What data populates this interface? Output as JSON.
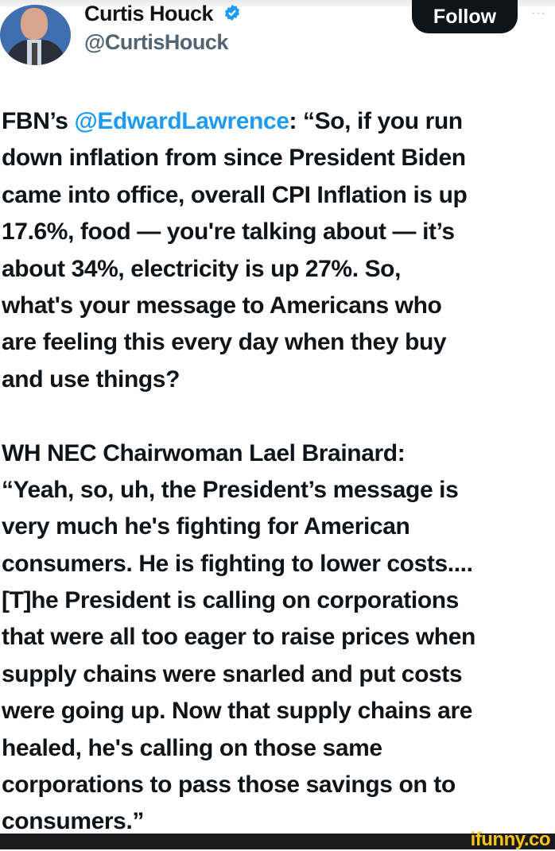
{
  "author": {
    "name": "Curtis Houck",
    "handle": "@CurtisHouck",
    "verified": true,
    "verified_color": "#1d9bf0"
  },
  "follow_label": "Follow",
  "more_label": "···",
  "tweet": {
    "first_line": {
      "prefix": "FBN’s ",
      "mention": "@EdwardLawrence",
      "suffix": ": “So, if you run"
    },
    "lines": [
      "down inflation from since President Biden",
      "came into office, overall CPI Inflation is up",
      "17.6%, food — you're talking about — it’s",
      "about 34%, electricity is up 27%. So,",
      "what's your message to Americans who",
      "are feeling this every day when they buy",
      "and use things?",
      "",
      "WH NEC Chairwoman Lael Brainard:",
      "“Yeah, so, uh, the President’s message is",
      "very much he's fighting for American",
      "consumers. He is fighting to lower costs....",
      "[T]he President is calling on corporations",
      "that were all too eager to raise prices when",
      "supply chains were snarled and put costs",
      "were going up. Now that supply chains are",
      "healed, he's calling on those same",
      "corporations to pass those savings on to",
      "consumers.”"
    ]
  },
  "watermark": "ifunny.co"
}
